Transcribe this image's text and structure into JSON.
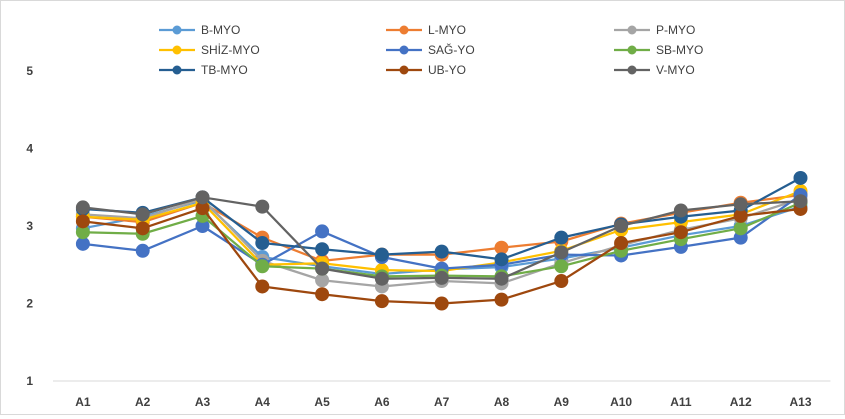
{
  "chart_data": {
    "type": "line",
    "title": "",
    "xlabel": "",
    "ylabel": "",
    "categories": [
      "A1",
      "A2",
      "A3",
      "A4",
      "A5",
      "A6",
      "A7",
      "A8",
      "A9",
      "A10",
      "A11",
      "A12",
      "A13"
    ],
    "ylim": [
      1,
      5
    ],
    "yticks": [
      "1",
      "2",
      "3",
      "4",
      "5"
    ],
    "grid": false,
    "legend_position": "top",
    "series": [
      {
        "name": "B-MYO",
        "color": "#5b9bd5",
        "values": [
          2.97,
          3.12,
          3.33,
          2.6,
          2.48,
          2.38,
          2.44,
          2.47,
          2.58,
          2.72,
          2.88,
          3.0,
          3.25
        ]
      },
      {
        "name": "L-MYO",
        "color": "#ed7d31",
        "values": [
          3.12,
          3.05,
          3.3,
          2.85,
          2.55,
          2.63,
          2.63,
          2.72,
          2.8,
          3.03,
          3.17,
          3.3,
          3.4
        ]
      },
      {
        "name": "P-MYO",
        "color": "#a5a5a5",
        "values": [
          3.15,
          3.1,
          3.35,
          2.55,
          2.3,
          2.22,
          2.29,
          2.26,
          2.52,
          2.75,
          2.95,
          3.1,
          3.35
        ]
      },
      {
        "name": "SHİZ-MYO",
        "color": "#ffc000",
        "values": [
          3.12,
          3.08,
          3.3,
          2.5,
          2.52,
          2.43,
          2.42,
          2.53,
          2.68,
          2.95,
          3.05,
          3.15,
          3.45
        ]
      },
      {
        "name": "SAĞ-YO",
        "color": "#4472c4",
        "values": [
          2.77,
          2.68,
          3.0,
          2.5,
          2.93,
          2.6,
          2.45,
          2.5,
          2.63,
          2.62,
          2.73,
          2.85,
          3.4
        ]
      },
      {
        "name": "SB-MYO",
        "color": "#70ad47",
        "values": [
          2.92,
          2.9,
          3.13,
          2.48,
          2.45,
          2.35,
          2.36,
          2.35,
          2.48,
          2.68,
          2.83,
          2.97,
          3.3
        ]
      },
      {
        "name": "TB-MYO",
        "color": "#255e91",
        "values": [
          3.22,
          3.17,
          3.37,
          2.78,
          2.7,
          2.63,
          2.67,
          2.57,
          2.85,
          3.02,
          3.12,
          3.2,
          3.62
        ]
      },
      {
        "name": "UB-YO",
        "color": "#9e480e",
        "values": [
          3.06,
          2.97,
          3.23,
          2.22,
          2.12,
          2.03,
          2.0,
          2.05,
          2.29,
          2.78,
          2.92,
          3.13,
          3.22
        ]
      },
      {
        "name": "V-MYO",
        "color": "#636363",
        "values": [
          3.24,
          3.15,
          3.37,
          3.25,
          2.45,
          2.32,
          2.33,
          2.32,
          2.66,
          3.0,
          3.2,
          3.28,
          3.32
        ]
      }
    ]
  }
}
